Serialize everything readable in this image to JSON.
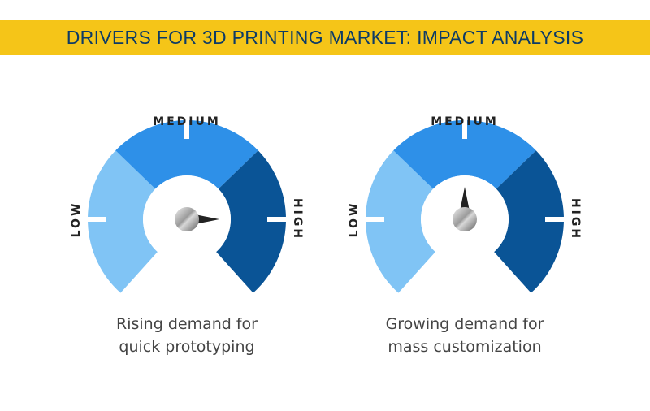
{
  "title": "DRIVERS FOR 3D PRINTING MARKET: IMPACT ANALYSIS",
  "colors": {
    "title_bar": "#F5C518",
    "title_text": "#0D3B66",
    "low": "#80C4F5",
    "medium": "#2E90E8",
    "high": "#0A5496",
    "background": "#FFFFFF"
  },
  "scale_labels": {
    "low": "LOW",
    "medium": "MEDIUM",
    "high": "HIGH"
  },
  "gauges": [
    {
      "caption_line1": "Rising demand for",
      "caption_line2": "quick prototyping",
      "impact_level": "high"
    },
    {
      "caption_line1": "Growing demand for",
      "caption_line2": "mass customization",
      "impact_level": "medium"
    }
  ]
}
